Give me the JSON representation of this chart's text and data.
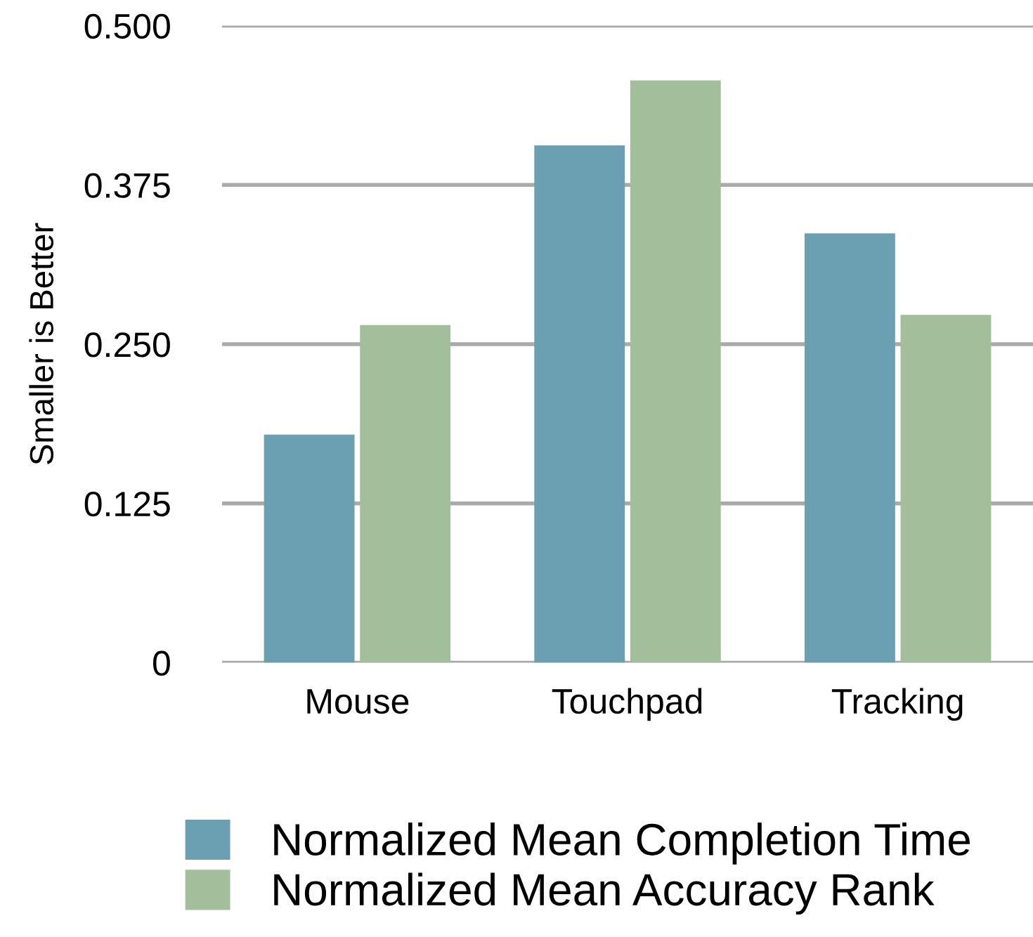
{
  "chart_data": {
    "type": "bar",
    "ylabel": "Smaller is Better",
    "categories": [
      "Mouse",
      "Touchpad",
      "Tracking"
    ],
    "series": [
      {
        "name": "Normalized Mean Completion Time",
        "color": "#6aa0b2",
        "values": [
          0.179,
          0.406,
          0.337
        ]
      },
      {
        "name": "Normalized Mean Accuracy Rank",
        "color": "#a2be9b",
        "values": [
          0.265,
          0.457,
          0.273
        ]
      }
    ],
    "ylim": [
      0,
      0.5
    ],
    "yticks": [
      0,
      {
        "value": 0.125,
        "label": "0.125"
      },
      {
        "value": 0.25,
        "label": "0.250"
      },
      {
        "value": 0.375,
        "label": "0.375"
      },
      {
        "value": 0.5,
        "label": "0.500"
      }
    ],
    "grid": "y",
    "legend": "bottom"
  }
}
